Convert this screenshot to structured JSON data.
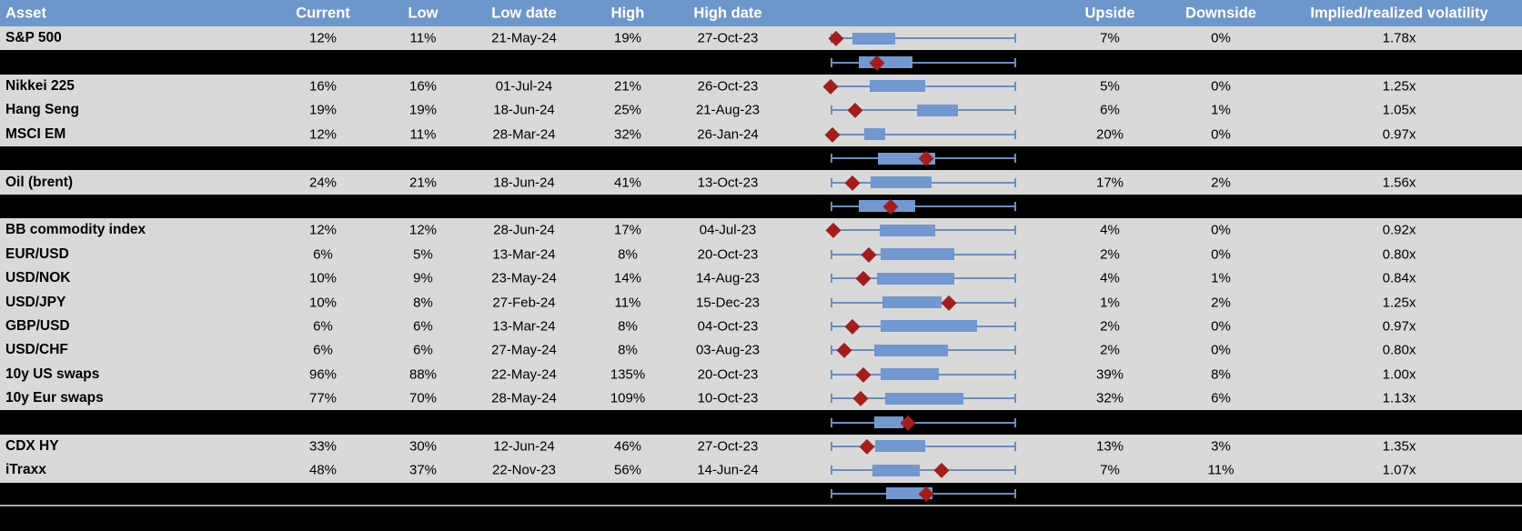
{
  "table": {
    "columns": [
      {
        "key": "asset",
        "label": "Asset"
      },
      {
        "key": "current",
        "label": "Current"
      },
      {
        "key": "low",
        "label": "Low"
      },
      {
        "key": "low_date",
        "label": "Low date"
      },
      {
        "key": "high",
        "label": "High"
      },
      {
        "key": "high_date",
        "label": "High date"
      },
      {
        "key": "upside",
        "label": "Upside"
      },
      {
        "key": "downside",
        "label": "Downside"
      },
      {
        "key": "vol_ratio",
        "label": "Implied/realized volatility"
      }
    ],
    "rows": [
      {
        "type": "data",
        "asset": "S&P 500",
        "current": "12%",
        "low": "11%",
        "low_date": "21-May-24",
        "high": "19%",
        "high_date": "27-Oct-23",
        "upside": "7%",
        "downside": "0%",
        "vol_ratio": "1.78x",
        "plot": {
          "box": [
            0.12,
            0.35
          ],
          "marker": 0.03
        }
      },
      {
        "type": "sep",
        "plot": {
          "box": [
            0.15,
            0.44
          ],
          "marker": 0.25
        }
      },
      {
        "type": "data",
        "asset": "Nikkei 225",
        "current": "16%",
        "low": "16%",
        "low_date": "01-Jul-24",
        "high": "21%",
        "high_date": "26-Oct-23",
        "upside": "5%",
        "downside": "0%",
        "vol_ratio": "1.25x",
        "plot": {
          "box": [
            0.21,
            0.51
          ],
          "marker": 0.0
        }
      },
      {
        "type": "data",
        "asset": "Hang Seng",
        "current": "19%",
        "low": "19%",
        "low_date": "18-Jun-24",
        "high": "25%",
        "high_date": "21-Aug-23",
        "upside": "6%",
        "downside": "1%",
        "vol_ratio": "1.05x",
        "plot": {
          "box": [
            0.465,
            0.685
          ],
          "marker": 0.13
        }
      },
      {
        "type": "data",
        "asset": "MSCI EM",
        "current": "12%",
        "low": "11%",
        "low_date": "28-Mar-24",
        "high": "32%",
        "high_date": "26-Jan-24",
        "upside": "20%",
        "downside": "0%",
        "vol_ratio": "0.97x",
        "plot": {
          "box": [
            0.18,
            0.295
          ],
          "marker": 0.01
        }
      },
      {
        "type": "sep",
        "plot": {
          "box": [
            0.255,
            0.565
          ],
          "marker": 0.515
        }
      },
      {
        "type": "data",
        "asset": "Oil (brent)",
        "current": "24%",
        "low": "21%",
        "low_date": "18-Jun-24",
        "high": "41%",
        "high_date": "13-Oct-23",
        "upside": "17%",
        "downside": "2%",
        "vol_ratio": "1.56x",
        "plot": {
          "box": [
            0.215,
            0.545
          ],
          "marker": 0.12
        }
      },
      {
        "type": "sep",
        "plot": {
          "box": [
            0.15,
            0.455
          ],
          "marker": 0.325
        }
      },
      {
        "type": "data",
        "asset": "BB commodity index",
        "current": "12%",
        "low": "12%",
        "low_date": "28-Jun-24",
        "high": "17%",
        "high_date": "04-Jul-23",
        "upside": "4%",
        "downside": "0%",
        "vol_ratio": "0.92x",
        "plot": {
          "box": [
            0.265,
            0.565
          ],
          "marker": 0.015
        }
      },
      {
        "type": "data",
        "asset": "EUR/USD",
        "current": "6%",
        "low": "5%",
        "low_date": "13-Mar-24",
        "high": "8%",
        "high_date": "20-Oct-23",
        "upside": "2%",
        "downside": "0%",
        "vol_ratio": "0.80x",
        "plot": {
          "box": [
            0.27,
            0.665
          ],
          "marker": 0.205
        }
      },
      {
        "type": "data",
        "asset": "USD/NOK",
        "current": "10%",
        "low": "9%",
        "low_date": "23-May-24",
        "high": "14%",
        "high_date": "14-Aug-23",
        "upside": "4%",
        "downside": "1%",
        "vol_ratio": "0.84x",
        "plot": {
          "box": [
            0.25,
            0.665
          ],
          "marker": 0.175
        }
      },
      {
        "type": "data",
        "asset": "USD/JPY",
        "current": "10%",
        "low": "8%",
        "low_date": "27-Feb-24",
        "high": "11%",
        "high_date": "15-Dec-23",
        "upside": "1%",
        "downside": "2%",
        "vol_ratio": "1.25x",
        "plot": {
          "box": [
            0.28,
            0.6
          ],
          "marker": 0.635
        }
      },
      {
        "type": "data",
        "asset": "GBP/USD",
        "current": "6%",
        "low": "6%",
        "low_date": "13-Mar-24",
        "high": "8%",
        "high_date": "04-Oct-23",
        "upside": "2%",
        "downside": "0%",
        "vol_ratio": "0.97x",
        "plot": {
          "box": [
            0.27,
            0.79
          ],
          "marker": 0.12
        }
      },
      {
        "type": "data",
        "asset": "USD/CHF",
        "current": "6%",
        "low": "6%",
        "low_date": "27-May-24",
        "high": "8%",
        "high_date": "03-Aug-23",
        "upside": "2%",
        "downside": "0%",
        "vol_ratio": "0.80x",
        "plot": {
          "box": [
            0.235,
            0.63
          ],
          "marker": 0.075
        }
      },
      {
        "type": "data",
        "asset": "10y US swaps",
        "current": "96%",
        "low": "88%",
        "low_date": "22-May-24",
        "high": "135%",
        "high_date": "20-Oct-23",
        "upside": "39%",
        "downside": "8%",
        "vol_ratio": "1.00x",
        "plot": {
          "box": [
            0.27,
            0.585
          ],
          "marker": 0.175
        }
      },
      {
        "type": "data",
        "asset": "10y Eur swaps",
        "current": "77%",
        "low": "70%",
        "low_date": "28-May-24",
        "high": "109%",
        "high_date": "10-Oct-23",
        "upside": "32%",
        "downside": "6%",
        "vol_ratio": "1.13x",
        "plot": {
          "box": [
            0.295,
            0.715
          ],
          "marker": 0.16
        }
      },
      {
        "type": "sep",
        "plot": {
          "box": [
            0.235,
            0.39
          ],
          "marker": 0.415
        }
      },
      {
        "type": "data",
        "asset": "CDX HY",
        "current": "33%",
        "low": "30%",
        "low_date": "12-Jun-24",
        "high": "46%",
        "high_date": "27-Oct-23",
        "upside": "13%",
        "downside": "3%",
        "vol_ratio": "1.35x",
        "plot": {
          "box": [
            0.24,
            0.51
          ],
          "marker": 0.195
        }
      },
      {
        "type": "data",
        "asset": "iTraxx",
        "current": "48%",
        "low": "37%",
        "low_date": "22-Nov-23",
        "high": "56%",
        "high_date": "14-Jun-24",
        "upside": "7%",
        "downside": "11%",
        "vol_ratio": "1.07x",
        "plot": {
          "box": [
            0.225,
            0.48
          ],
          "marker": 0.6
        }
      },
      {
        "type": "sep",
        "height": 24,
        "plot": {
          "box": [
            0.3,
            0.55
          ],
          "marker": 0.515
        }
      }
    ]
  },
  "chart_data": {
    "type": "boxplot",
    "orientation": "horizontal",
    "note": "One horizontal box-and-whisker plot per table row; no axis or tick labels shown. Values are normalized 0-1 positions along each row's whisker span (whisker caps at 0 and 1). 'box' is the blue interquartile box [start,end]; 'marker' is the red diamond (current level). Black separator rows carry unlabeled aggregate box plots.",
    "axis_range": [
      0,
      1
    ],
    "series": [
      {
        "name": "S&P 500",
        "box": [
          0.12,
          0.35
        ],
        "marker": 0.03
      },
      {
        "name": "",
        "box": [
          0.15,
          0.44
        ],
        "marker": 0.25
      },
      {
        "name": "Nikkei 225",
        "box": [
          0.21,
          0.51
        ],
        "marker": 0.0
      },
      {
        "name": "Hang Seng",
        "box": [
          0.465,
          0.685
        ],
        "marker": 0.13
      },
      {
        "name": "MSCI EM",
        "box": [
          0.18,
          0.295
        ],
        "marker": 0.01
      },
      {
        "name": "",
        "box": [
          0.255,
          0.565
        ],
        "marker": 0.515
      },
      {
        "name": "Oil (brent)",
        "box": [
          0.215,
          0.545
        ],
        "marker": 0.12
      },
      {
        "name": "",
        "box": [
          0.15,
          0.455
        ],
        "marker": 0.325
      },
      {
        "name": "BB commodity index",
        "box": [
          0.265,
          0.565
        ],
        "marker": 0.015
      },
      {
        "name": "EUR/USD",
        "box": [
          0.27,
          0.665
        ],
        "marker": 0.205
      },
      {
        "name": "USD/NOK",
        "box": [
          0.25,
          0.665
        ],
        "marker": 0.175
      },
      {
        "name": "USD/JPY",
        "box": [
          0.28,
          0.6
        ],
        "marker": 0.635
      },
      {
        "name": "GBP/USD",
        "box": [
          0.27,
          0.79
        ],
        "marker": 0.12
      },
      {
        "name": "USD/CHF",
        "box": [
          0.235,
          0.63
        ],
        "marker": 0.075
      },
      {
        "name": "10y US swaps",
        "box": [
          0.27,
          0.585
        ],
        "marker": 0.175
      },
      {
        "name": "10y Eur swaps",
        "box": [
          0.295,
          0.715
        ],
        "marker": 0.16
      },
      {
        "name": "",
        "box": [
          0.235,
          0.39
        ],
        "marker": 0.415
      },
      {
        "name": "CDX HY",
        "box": [
          0.24,
          0.51
        ],
        "marker": 0.195
      },
      {
        "name": "iTraxx",
        "box": [
          0.225,
          0.48
        ],
        "marker": 0.6
      },
      {
        "name": "",
        "box": [
          0.3,
          0.55
        ],
        "marker": 0.515
      }
    ]
  },
  "colors": {
    "header_bg": "#6D96CB",
    "header_text": "#FFFFFF",
    "row_bg": "#D9D9D9",
    "separator_bg": "#000000",
    "box_fill": "#7298CF",
    "whisker": "#688FC6",
    "marker": "#A21E1E",
    "bottom_divider": "#A9A9A9"
  }
}
